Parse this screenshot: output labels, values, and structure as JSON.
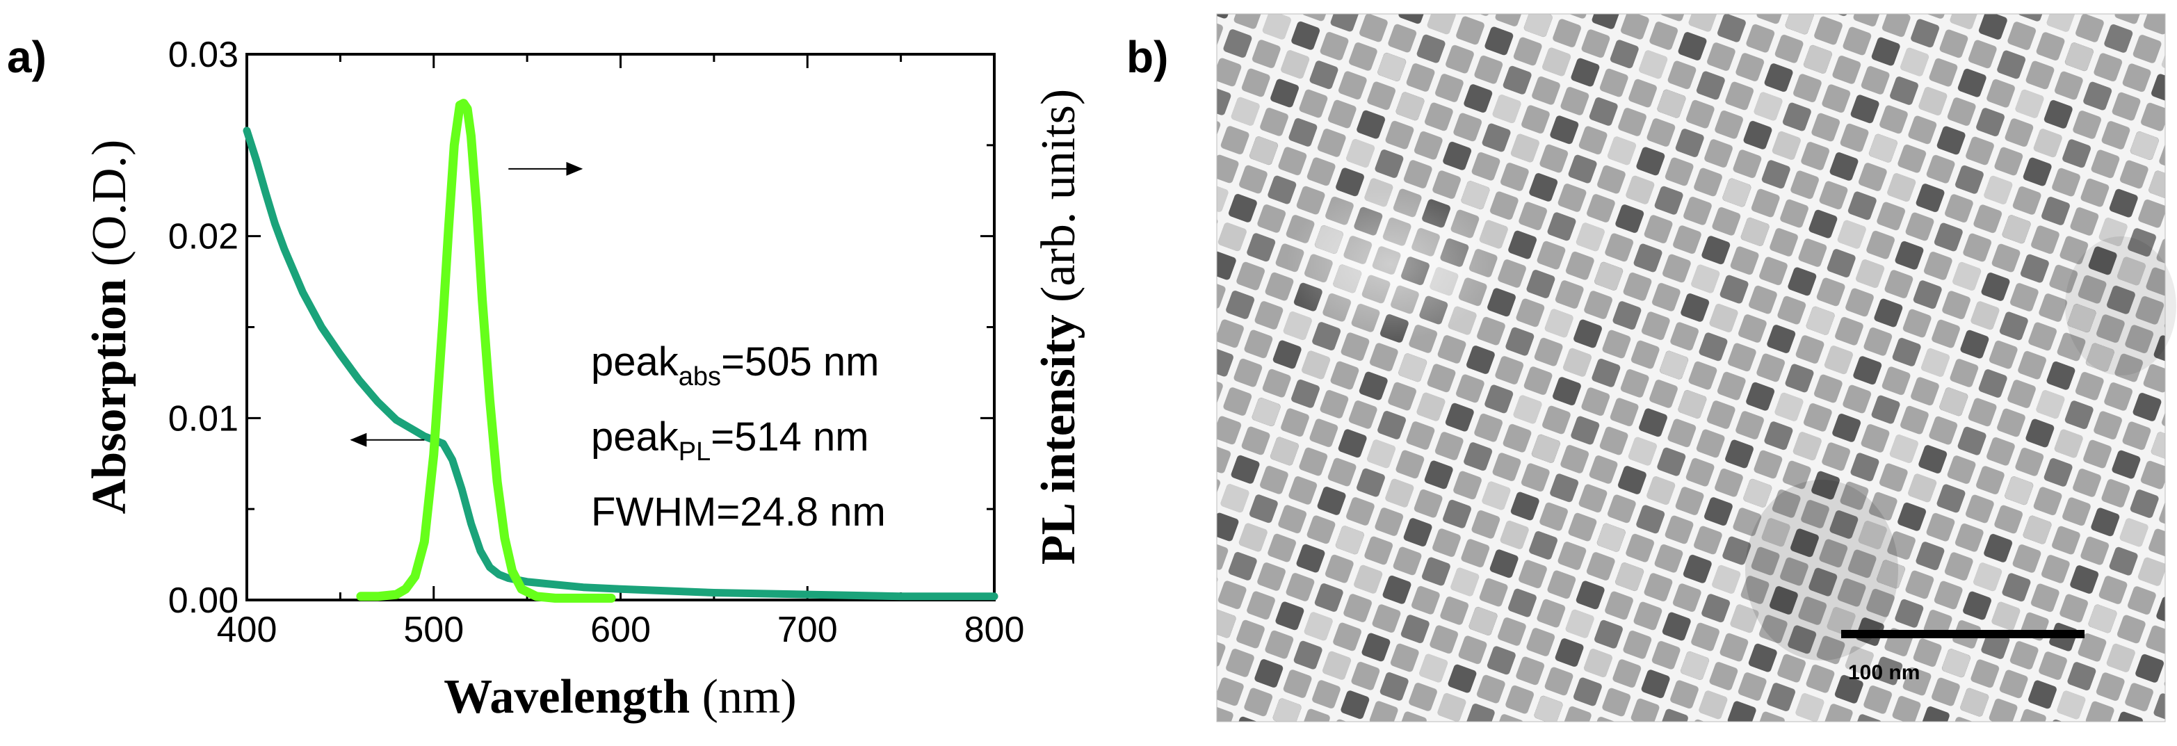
{
  "panels": {
    "a_label": "a)",
    "b_label": "b)"
  },
  "chart_data": {
    "type": "line",
    "xlabel_bold": "Wavelength",
    "xlabel_unit": " (nm)",
    "ylabel_left_bold": "Absorption",
    "ylabel_left_unit": " (O.D.)",
    "ylabel_right_bold": "PL intensity",
    "ylabel_right_unit": " (arb. units)",
    "xlim": [
      400,
      800
    ],
    "ylim": [
      0,
      0.03
    ],
    "x_ticks": [
      "400",
      "500",
      "600",
      "700",
      "800"
    ],
    "y_ticks": [
      "0.00",
      "0.01",
      "0.02",
      "0.03"
    ],
    "series": [
      {
        "name": "Absorption",
        "axis": "left",
        "color": "#1aa37a",
        "x": [
          400,
          405,
          410,
          415,
          420,
          425,
          430,
          440,
          450,
          460,
          470,
          480,
          490,
          495,
          500,
          505,
          510,
          515,
          520,
          525,
          530,
          535,
          540,
          550,
          560,
          580,
          600,
          650,
          700,
          750,
          800
        ],
        "y": [
          0.0258,
          0.0242,
          0.0224,
          0.0207,
          0.0193,
          0.0181,
          0.0169,
          0.015,
          0.0135,
          0.0121,
          0.0109,
          0.0099,
          0.0093,
          0.009,
          0.0088,
          0.0086,
          0.0077,
          0.0061,
          0.0042,
          0.0027,
          0.0018,
          0.0014,
          0.0012,
          0.001,
          0.0009,
          0.0007,
          0.0006,
          0.0004,
          0.0003,
          0.0002,
          0.0002
        ]
      },
      {
        "name": "PL",
        "axis": "right",
        "color": "#66ff1a",
        "x": [
          461,
          470,
          480,
          485,
          490,
          495,
          500,
          505,
          508,
          511,
          514,
          516,
          518,
          520,
          523,
          526,
          530,
          534,
          538,
          542,
          547,
          555,
          565,
          580,
          595
        ],
        "y": [
          0.0002,
          0.0002,
          0.0003,
          0.0006,
          0.0013,
          0.0032,
          0.008,
          0.0155,
          0.0205,
          0.025,
          0.0272,
          0.0273,
          0.027,
          0.0255,
          0.0215,
          0.0165,
          0.011,
          0.0065,
          0.0034,
          0.0016,
          0.0006,
          0.0002,
          0.0001,
          0.0001,
          0.0001
        ]
      }
    ],
    "annotations": {
      "peak_abs_prefix": "peak",
      "peak_abs_sub": "abs",
      "peak_abs_value": "=505 nm",
      "peak_pl_prefix": "peak",
      "peak_pl_sub": "PL",
      "peak_pl_value": "=514 nm",
      "fwhm": "FWHM=24.8 nm"
    },
    "arrows": [
      {
        "series": "Absorption",
        "direction": "left",
        "at_x": 495,
        "at_y": 0.0088
      },
      {
        "series": "PL",
        "direction": "right",
        "at_x": 540,
        "at_y": 0.0237
      }
    ]
  },
  "tem_image": {
    "scale_bar_label": "100 nm"
  }
}
